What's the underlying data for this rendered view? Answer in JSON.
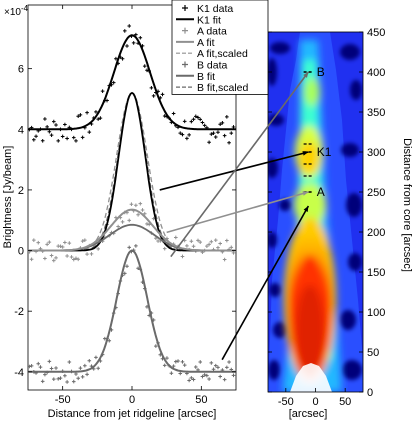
{
  "chart_data": [
    {
      "type": "line",
      "xlabel": "Distance from jet ridgeline [arcsec]",
      "ylabel": "Brightness [Jy/beam]",
      "y_exponent_label": "×10",
      "y_exponent": "-4",
      "xlim": [
        -75,
        75
      ],
      "ylim": [
        -4.6,
        8.1
      ],
      "x_ticks": [
        -50,
        0,
        50
      ],
      "y_ticks": [
        -4,
        -2,
        0,
        2,
        4,
        6
      ],
      "legend_position": "top-right",
      "series": [
        {
          "name": "K1 data",
          "kind": "scatter",
          "color": "#000000",
          "baseline": 4.0,
          "amp": 3.1,
          "sigma": 13,
          "center": 0,
          "noise": 0.45
        },
        {
          "name": "K1 fit",
          "kind": "line",
          "color": "#000000",
          "baseline": 4.0,
          "amp": 3.1,
          "sigma": 13,
          "center": 0
        },
        {
          "name": "A data",
          "kind": "scatter",
          "color": "#909090",
          "baseline": 0.0,
          "amp": 1.35,
          "sigma": 15,
          "center": 0,
          "noise": 0.35
        },
        {
          "name": "A fit",
          "kind": "line",
          "color": "#909090",
          "baseline": 0.0,
          "amp": 1.35,
          "sigma": 15,
          "center": 0
        },
        {
          "name": "A fit,scaled",
          "kind": "dashed",
          "color": "#909090",
          "baseline": 0.0,
          "amp": 5.2,
          "sigma": 11,
          "center": 0
        },
        {
          "name": "B data",
          "kind": "scatter",
          "color": "#6a6a6a",
          "baseline": -4.0,
          "amp": 4.0,
          "sigma": 11,
          "center": 0,
          "noise": 0.35
        },
        {
          "name": "B fit",
          "kind": "line",
          "color": "#6a6a6a",
          "baseline": -4.0,
          "amp": 4.0,
          "sigma": 11,
          "center": 0
        },
        {
          "name": "B fit,scaled",
          "kind": "dashed",
          "color": "#6a6a6a",
          "baseline": 0.0,
          "amp": 5.2,
          "sigma": 10,
          "center": 0
        }
      ],
      "extra_curves": [
        {
          "color": "#000000",
          "baseline": 0.0,
          "amp": 5.2,
          "sigma": 9.5,
          "center": 0
        },
        {
          "color": "#6a6a6a",
          "baseline": 0.0,
          "amp": 0.85,
          "sigma": 16,
          "center": 0
        }
      ]
    },
    {
      "type": "heatmap",
      "xlabel": "[arcsec]",
      "ylabel": "Distance from core [arcsec]",
      "xlim": [
        -80,
        80
      ],
      "ylim": [
        0,
        450
      ],
      "x_ticks": [
        -50,
        0,
        50
      ],
      "y_ticks": [
        0,
        50,
        100,
        150,
        200,
        250,
        300,
        350,
        400,
        450
      ],
      "colormap": "jet",
      "annotations": [
        {
          "text": "B",
          "y": 400
        },
        {
          "text": "K1",
          "y": 300
        },
        {
          "text": "A",
          "y": 250
        }
      ]
    }
  ]
}
